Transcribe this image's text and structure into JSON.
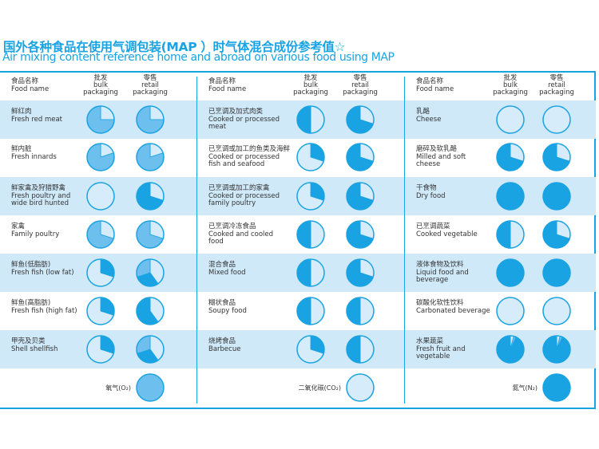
{
  "title_cn": "国外各种食品在使用气调包装(MAP ）时气体混合成份参考值☆",
  "title_en": "Air mixing content reference home and abroad on various food using MAP",
  "header": {
    "name_cn": "食品名称",
    "name_en": "Food name",
    "bulk_cn": "批发",
    "bulk_en1": "bulk",
    "bulk_en2": "packaging",
    "retail_cn": "零售",
    "retail_en1": "retail",
    "retail_en2": "packaging"
  },
  "colors": {
    "CO2": "#d6ecfa",
    "O2": "#6dbfee",
    "N2": "#1aa3e3",
    "accent": "#1aa3e3",
    "row_band": "#cfe9f9"
  },
  "chart_data": {
    "type": "pie",
    "note_order": "slices clockwise from 12 o'clock, percent",
    "legend": [
      {
        "gas": "O2",
        "label": "氧气(O₂)"
      },
      {
        "gas": "CO2",
        "label": "二氧化碳(CO₂)"
      },
      {
        "gas": "N2",
        "label": "氮气(N₂)"
      }
    ],
    "panels": [
      [
        {
          "cn": "鲜红肉",
          "en": "Fresh red meat",
          "bulk": [
            [
              "CO2",
              25
            ],
            [
              "O2",
              75
            ]
          ],
          "retail": [
            [
              "CO2",
              25
            ],
            [
              "O2",
              75
            ]
          ]
        },
        {
          "cn": "鲜内脏",
          "en": "Fresh innards",
          "bulk": [
            [
              "CO2",
              20
            ],
            [
              "O2",
              80
            ]
          ],
          "retail": [
            [
              "CO2",
              20
            ],
            [
              "O2",
              80
            ]
          ]
        },
        {
          "cn": "鲜家禽及狩猎野禽",
          "en": "Fresh poultry and wide bird hunted",
          "bulk": [
            [
              "CO2",
              100
            ]
          ],
          "retail": [
            [
              "CO2",
              30
            ],
            [
              "N2",
              70
            ]
          ]
        },
        {
          "cn": "家禽",
          "en": "Family poultry",
          "bulk": [
            [
              "CO2",
              30
            ],
            [
              "O2",
              70
            ]
          ],
          "retail": [
            [
              "CO2",
              30
            ],
            [
              "O2",
              70
            ]
          ]
        },
        {
          "cn": "鲜鱼(低脂肪)",
          "en": "Fresh fish (low fat)",
          "bulk": [
            [
              "N2",
              30
            ],
            [
              "CO2",
              70
            ]
          ],
          "retail": [
            [
              "CO2",
              40
            ],
            [
              "N2",
              30
            ],
            [
              "O2",
              30
            ]
          ]
        },
        {
          "cn": "鲜鱼(高脂肪)",
          "en": "Fresh fish (high fat)",
          "bulk": [
            [
              "N2",
              30
            ],
            [
              "CO2",
              70
            ]
          ],
          "retail": [
            [
              "CO2",
              40
            ],
            [
              "N2",
              60
            ]
          ]
        },
        {
          "cn": "甲壳及贝类",
          "en": "Shell shellfish",
          "bulk": [
            [
              "N2",
              30
            ],
            [
              "CO2",
              70
            ]
          ],
          "retail": [
            [
              "CO2",
              40
            ],
            [
              "N2",
              30
            ],
            [
              "O2",
              30
            ]
          ]
        }
      ],
      [
        {
          "cn": "已烹调及加式肉类",
          "en": "Cooked or processed meat",
          "bulk": [
            [
              "CO2",
              50
            ],
            [
              "N2",
              50
            ]
          ],
          "retail": [
            [
              "CO2",
              30
            ],
            [
              "N2",
              70
            ]
          ]
        },
        {
          "cn": "已烹调或加工的鱼类及海鲜",
          "en": "Cooked or processed fish and seafood",
          "bulk": [
            [
              "N2",
              30
            ],
            [
              "CO2",
              70
            ]
          ],
          "retail": [
            [
              "CO2",
              30
            ],
            [
              "N2",
              70
            ]
          ]
        },
        {
          "cn": "已烹调或加工的家禽",
          "en": "Cooked or processed family poultry",
          "bulk": [
            [
              "N2",
              30
            ],
            [
              "CO2",
              70
            ]
          ],
          "retail": [
            [
              "CO2",
              30
            ],
            [
              "N2",
              70
            ]
          ]
        },
        {
          "cn": "已烹调冷冻食品",
          "en": "Cooked and cooled food",
          "bulk": [
            [
              "CO2",
              50
            ],
            [
              "N2",
              50
            ]
          ],
          "retail": [
            [
              "CO2",
              30
            ],
            [
              "N2",
              70
            ]
          ]
        },
        {
          "cn": "混合食品",
          "en": "Mixed food",
          "bulk": [
            [
              "CO2",
              50
            ],
            [
              "N2",
              50
            ]
          ],
          "retail": [
            [
              "CO2",
              30
            ],
            [
              "N2",
              70
            ]
          ]
        },
        {
          "cn": "糊状食品",
          "en": "Soupy food",
          "bulk": [
            [
              "CO2",
              50
            ],
            [
              "N2",
              50
            ]
          ],
          "retail": [
            [
              "CO2",
              50
            ],
            [
              "N2",
              50
            ]
          ]
        },
        {
          "cn": "烧烤食品",
          "en": "Barbecue",
          "bulk": [
            [
              "N2",
              30
            ],
            [
              "CO2",
              70
            ]
          ],
          "retail": [
            [
              "CO2",
              50
            ],
            [
              "N2",
              50
            ]
          ]
        }
      ],
      [
        {
          "cn": "乳酪",
          "en": "Cheese",
          "bulk": [
            [
              "CO2",
              100
            ]
          ],
          "retail": [
            [
              "CO2",
              100
            ]
          ]
        },
        {
          "cn": "磨碎及软乳酪",
          "en": "Milled and soft cheese",
          "bulk": [
            [
              "CO2",
              30
            ],
            [
              "N2",
              70
            ]
          ],
          "retail": [
            [
              "CO2",
              30
            ],
            [
              "N2",
              70
            ]
          ]
        },
        {
          "cn": "干食物",
          "en": "Dry food",
          "bulk": [
            [
              "N2",
              100
            ]
          ],
          "retail": [
            [
              "N2",
              100
            ]
          ]
        },
        {
          "cn": "已烹调蔬菜",
          "en": "Cooked vegetable",
          "bulk": [
            [
              "CO2",
              50
            ],
            [
              "N2",
              50
            ]
          ],
          "retail": [
            [
              "CO2",
              30
            ],
            [
              "N2",
              70
            ]
          ]
        },
        {
          "cn": "液体食物及饮料",
          "en": "Liquid food and beverage",
          "bulk": [
            [
              "N2",
              100
            ]
          ],
          "retail": [
            [
              "N2",
              100
            ]
          ]
        },
        {
          "cn": "碳酸化软性饮料",
          "en": "Carbonated beverage",
          "bulk": [
            [
              "CO2",
              100
            ]
          ],
          "retail": [
            [
              "CO2",
              100
            ]
          ]
        },
        {
          "cn": "水果蔬菜",
          "en": "Fresh fruit and vegetable",
          "bulk": [
            [
              "CO2",
              4
            ],
            [
              "O2",
              3
            ],
            [
              "N2",
              93
            ]
          ],
          "retail": [
            [
              "CO2",
              4
            ],
            [
              "O2",
              3
            ],
            [
              "N2",
              93
            ]
          ]
        }
      ]
    ]
  }
}
